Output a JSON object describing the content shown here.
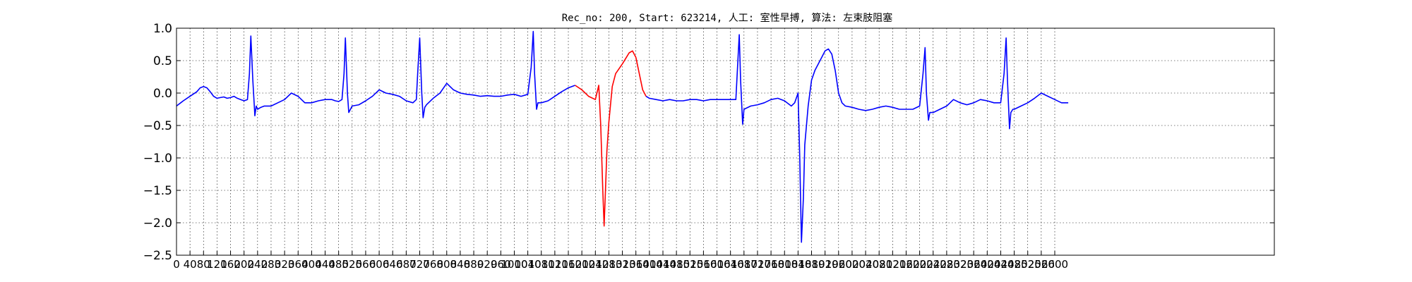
{
  "chart_data": {
    "type": "line",
    "title": "Rec_no: 200, Start: 623214, 人工: 室性早搏, 算法: 左束肢阻塞",
    "xlabel": "",
    "ylabel": "",
    "xlim": [
      0,
      3250
    ],
    "ylim": [
      -2.5,
      1.0
    ],
    "grid": true,
    "yticks": [
      1.0,
      0.5,
      0.0,
      -0.5,
      -1.0,
      -1.5,
      -2.0,
      -2.5
    ],
    "ytick_labels": [
      "1.0",
      "0.5",
      "0.0",
      "−0.5",
      "−1.0",
      "−1.5",
      "−2.0",
      "−2.5"
    ],
    "xticks": [
      0,
      40,
      80,
      120,
      160,
      200,
      240,
      280,
      320,
      360,
      400,
      440,
      480,
      520,
      560,
      600,
      640,
      680,
      720,
      760,
      800,
      840,
      880,
      920,
      960,
      1000,
      1040,
      1080,
      1120,
      1160,
      1200,
      1240,
      1280,
      1320,
      1360,
      1400,
      1440,
      1480,
      1520,
      1560,
      1600,
      1640,
      1680,
      1720,
      1760,
      1800,
      1840,
      1880,
      1920,
      1960,
      2000,
      2040,
      2080,
      2120,
      2160,
      2200,
      2240,
      2280,
      2320,
      2360,
      2400,
      2440,
      2480,
      2520,
      2560,
      2600
    ],
    "series": [
      {
        "color": "#0000ff",
        "x": [
          0,
          20,
          40,
          60,
          70,
          80,
          90,
          100,
          110,
          120,
          130,
          140,
          150,
          160,
          170,
          180,
          190,
          200,
          210,
          216,
          220,
          226,
          232,
          236,
          240,
          250,
          260,
          280,
          300,
          320,
          340,
          360,
          380,
          400,
          420,
          440,
          460,
          470,
          480,
          490,
          496,
          500,
          506,
          510,
          515,
          520,
          540,
          560,
          580,
          600,
          620,
          640,
          660,
          680,
          700,
          710,
          714,
          720,
          726,
          730,
          735,
          740,
          760,
          780,
          800,
          820,
          840,
          860,
          880,
          900,
          920,
          940,
          960,
          980,
          1000,
          1020,
          1040,
          1050,
          1056,
          1060,
          1066,
          1070,
          1076,
          1080,
          1100,
          1120,
          1140,
          1160,
          1180
        ],
        "y": [
          -0.2,
          -0.12,
          -0.05,
          0.02,
          0.08,
          0.1,
          0.08,
          0.02,
          -0.05,
          -0.08,
          -0.07,
          -0.06,
          -0.08,
          -0.07,
          -0.05,
          -0.08,
          -0.1,
          -0.12,
          -0.1,
          0.3,
          0.88,
          0.2,
          -0.35,
          -0.2,
          -0.25,
          -0.22,
          -0.2,
          -0.2,
          -0.15,
          -0.1,
          0.0,
          -0.05,
          -0.15,
          -0.15,
          -0.12,
          -0.1,
          -0.1,
          -0.12,
          -0.13,
          -0.1,
          0.3,
          0.85,
          0.0,
          -0.3,
          -0.25,
          -0.2,
          -0.18,
          -0.12,
          -0.05,
          0.05,
          0.0,
          -0.02,
          -0.05,
          -0.12,
          -0.15,
          -0.1,
          0.3,
          0.85,
          0.0,
          -0.38,
          -0.22,
          -0.18,
          -0.08,
          0.0,
          0.15,
          0.05,
          0.0,
          -0.02,
          -0.03,
          -0.05,
          -0.04,
          -0.05,
          -0.05,
          -0.03,
          -0.02,
          -0.05,
          -0.02,
          0.4,
          0.95,
          0.3,
          -0.25,
          -0.15,
          -0.15,
          -0.15,
          -0.12,
          -0.05,
          0.02,
          0.08,
          0.12
        ]
      },
      {
        "color": "#ff0000",
        "x": [
          1180,
          1200,
          1220,
          1240,
          1250,
          1256,
          1262,
          1266,
          1270,
          1274,
          1280,
          1290,
          1300,
          1320,
          1340,
          1350,
          1360,
          1370,
          1380,
          1390
        ],
        "y": [
          0.12,
          0.05,
          -0.05,
          -0.1,
          0.12,
          -0.5,
          -1.5,
          -2.05,
          -1.5,
          -0.9,
          -0.45,
          0.1,
          0.3,
          0.45,
          0.62,
          0.65,
          0.55,
          0.3,
          0.05,
          -0.05
        ],
        "name": ""
      },
      {
        "color": "#0000ff",
        "x": [
          1390,
          1400,
          1420,
          1440,
          1460,
          1480,
          1500,
          1520,
          1540,
          1560,
          1580,
          1600,
          1620,
          1640,
          1656,
          1660,
          1666,
          1670,
          1676,
          1680,
          1700,
          1720,
          1740,
          1760,
          1780,
          1800,
          1820,
          1830,
          1840,
          1845,
          1850,
          1856,
          1860,
          1870,
          1880,
          1890,
          1900,
          1910,
          1920,
          1930,
          1940,
          1950,
          1960,
          1970,
          1980,
          2000,
          2020,
          2040,
          2060,
          2080,
          2100,
          2120,
          2140,
          2160,
          2180,
          2200,
          2210,
          2216,
          2220,
          2226,
          2230,
          2236,
          2240,
          2260,
          2280,
          2300,
          2320,
          2340,
          2360,
          2380,
          2400,
          2420,
          2440,
          2450,
          2456,
          2460,
          2466,
          2470,
          2476,
          2480,
          2500,
          2520,
          2540,
          2560,
          2580,
          2600,
          2620,
          2640
        ],
        "y": [
          -0.05,
          -0.08,
          -0.1,
          -0.12,
          -0.1,
          -0.12,
          -0.12,
          -0.1,
          -0.1,
          -0.12,
          -0.1,
          -0.1,
          -0.1,
          -0.1,
          -0.1,
          0.3,
          0.9,
          0.2,
          -0.48,
          -0.25,
          -0.2,
          -0.18,
          -0.15,
          -0.1,
          -0.08,
          -0.12,
          -0.2,
          -0.15,
          0.0,
          -1.0,
          -2.3,
          -1.6,
          -0.8,
          -0.2,
          0.2,
          0.35,
          0.45,
          0.55,
          0.65,
          0.68,
          0.6,
          0.35,
          0.0,
          -0.15,
          -0.2,
          -0.22,
          -0.25,
          -0.27,
          -0.25,
          -0.22,
          -0.2,
          -0.22,
          -0.25,
          -0.25,
          -0.25,
          -0.2,
          0.3,
          0.7,
          0.0,
          -0.42,
          -0.3,
          -0.3,
          -0.3,
          -0.25,
          -0.2,
          -0.1,
          -0.15,
          -0.18,
          -0.15,
          -0.1,
          -0.12,
          -0.15,
          -0.15,
          0.3,
          0.85,
          0.2,
          -0.55,
          -0.3,
          -0.25,
          -0.25,
          -0.2,
          -0.15,
          -0.08,
          0.0,
          -0.05,
          -0.1,
          -0.15,
          -0.15
        ],
        "name": ""
      }
    ]
  }
}
